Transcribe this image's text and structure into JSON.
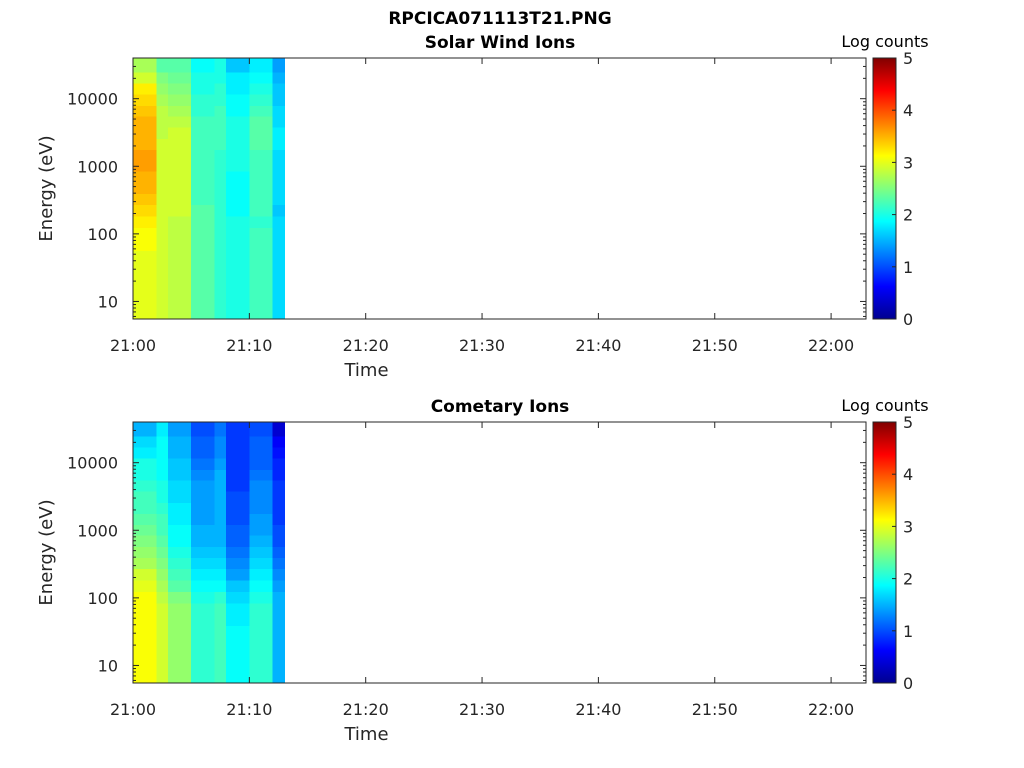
{
  "figure_title": "RPCICA071113T21.PNG",
  "chart_data": [
    {
      "type": "heatmap",
      "title": "Solar Wind Ions",
      "xlabel": "Time",
      "ylabel": "Energy (eV)",
      "x_ticks": [
        "21:00",
        "21:10",
        "21:20",
        "21:30",
        "21:40",
        "21:50",
        "22:00"
      ],
      "x_range": [
        "21:00",
        "22:03"
      ],
      "y_scale": "log",
      "y_ticks": [
        "10",
        "100",
        "1000",
        "10000"
      ],
      "y_range": [
        5.5,
        40000
      ],
      "colorbar_label": "Log counts",
      "colorbar_ticks": [
        "0",
        "1",
        "2",
        "3",
        "4",
        "5"
      ],
      "colorbar_range": [
        0,
        5
      ],
      "colormap": "jet",
      "time_columns": [
        "21:00",
        "21:02",
        "21:03",
        "21:05",
        "21:07",
        "21:08",
        "21:10",
        "21:12"
      ],
      "data_end": "21:13",
      "energy_rows": [
        30000,
        20000,
        14000,
        9500,
        6500,
        4500,
        3100,
        2100,
        1450,
        1000,
        690,
        470,
        320,
        220,
        150,
        100,
        68,
        46,
        32,
        22,
        15,
        10,
        7
      ],
      "log_counts": [
        [
          2.7,
          2.3,
          2.3,
          1.9,
          2.0,
          1.6,
          1.8,
          1.4
        ],
        [
          2.9,
          2.5,
          2.4,
          2.0,
          2.0,
          1.8,
          1.9,
          1.5
        ],
        [
          3.2,
          2.6,
          2.5,
          2.0,
          2.1,
          1.8,
          2.0,
          1.6
        ],
        [
          3.3,
          2.7,
          2.6,
          2.1,
          2.1,
          1.9,
          2.1,
          1.6
        ],
        [
          3.4,
          2.8,
          2.7,
          2.1,
          2.2,
          1.9,
          2.2,
          1.7
        ],
        [
          3.5,
          2.8,
          2.8,
          2.2,
          2.2,
          2.0,
          2.3,
          1.7
        ],
        [
          3.5,
          2.8,
          2.9,
          2.2,
          2.2,
          2.0,
          2.3,
          1.8
        ],
        [
          3.5,
          2.9,
          2.9,
          2.2,
          2.2,
          2.0,
          2.3,
          1.8
        ],
        [
          3.6,
          2.9,
          2.9,
          2.2,
          2.1,
          2.0,
          2.2,
          1.7
        ],
        [
          3.6,
          2.9,
          2.9,
          2.2,
          2.1,
          2.0,
          2.2,
          1.7
        ],
        [
          3.5,
          2.9,
          2.9,
          2.2,
          2.1,
          1.9,
          2.2,
          1.7
        ],
        [
          3.5,
          2.9,
          2.9,
          2.2,
          2.1,
          1.9,
          2.2,
          1.7
        ],
        [
          3.4,
          2.9,
          2.9,
          2.2,
          2.1,
          1.9,
          2.2,
          1.7
        ],
        [
          3.3,
          2.9,
          2.9,
          2.3,
          2.1,
          1.9,
          2.2,
          1.6
        ],
        [
          3.2,
          2.9,
          2.8,
          2.3,
          2.1,
          2.0,
          2.1,
          1.7
        ],
        [
          3.1,
          2.9,
          2.8,
          2.3,
          2.1,
          2.0,
          2.2,
          1.7
        ],
        [
          3.1,
          2.9,
          2.8,
          2.3,
          2.1,
          2.0,
          2.2,
          1.7
        ],
        [
          3.0,
          2.9,
          2.8,
          2.3,
          2.1,
          2.0,
          2.2,
          1.7
        ],
        [
          3.0,
          2.9,
          2.8,
          2.3,
          2.1,
          2.0,
          2.2,
          1.7
        ],
        [
          3.0,
          2.9,
          2.8,
          2.3,
          2.1,
          2.0,
          2.2,
          1.7
        ],
        [
          3.0,
          2.9,
          2.8,
          2.3,
          2.1,
          2.0,
          2.2,
          1.7
        ],
        [
          3.0,
          2.9,
          2.8,
          2.3,
          2.1,
          2.0,
          2.2,
          1.7
        ],
        [
          3.0,
          2.9,
          2.8,
          2.3,
          2.1,
          2.0,
          2.2,
          1.7
        ]
      ]
    },
    {
      "type": "heatmap",
      "title": "Cometary Ions",
      "xlabel": "Time",
      "ylabel": "Energy (eV)",
      "x_ticks": [
        "21:00",
        "21:10",
        "21:20",
        "21:30",
        "21:40",
        "21:50",
        "22:00"
      ],
      "x_range": [
        "21:00",
        "22:03"
      ],
      "y_scale": "log",
      "y_ticks": [
        "10",
        "100",
        "1000",
        "10000"
      ],
      "y_range": [
        5.5,
        40000
      ],
      "colorbar_label": "Log counts",
      "colorbar_ticks": [
        "0",
        "1",
        "2",
        "3",
        "4",
        "5"
      ],
      "colorbar_range": [
        0,
        5
      ],
      "colormap": "jet",
      "time_columns": [
        "21:00",
        "21:02",
        "21:03",
        "21:05",
        "21:07",
        "21:08",
        "21:10",
        "21:12"
      ],
      "data_end": "21:13",
      "energy_rows": [
        30000,
        20000,
        14000,
        9500,
        6500,
        4500,
        3100,
        2100,
        1450,
        1000,
        690,
        470,
        320,
        220,
        150,
        100,
        68,
        46,
        32,
        22,
        15,
        10,
        7
      ],
      "log_counts": [
        [
          1.5,
          1.8,
          1.4,
          1.0,
          1.2,
          0.9,
          1.0,
          0.4
        ],
        [
          1.7,
          1.9,
          1.5,
          1.1,
          1.3,
          0.9,
          1.1,
          0.6
        ],
        [
          1.8,
          1.9,
          1.5,
          1.1,
          1.3,
          0.9,
          1.1,
          0.7
        ],
        [
          2.0,
          1.9,
          1.6,
          1.2,
          1.4,
          0.9,
          1.1,
          0.8
        ],
        [
          2.0,
          1.9,
          1.6,
          1.3,
          1.5,
          0.9,
          1.2,
          0.8
        ],
        [
          2.1,
          2.0,
          1.7,
          1.4,
          1.5,
          0.9,
          1.3,
          0.9
        ],
        [
          2.2,
          2.0,
          1.7,
          1.4,
          1.5,
          1.0,
          1.3,
          0.9
        ],
        [
          2.2,
          2.1,
          1.8,
          1.4,
          1.5,
          1.0,
          1.3,
          0.9
        ],
        [
          2.3,
          2.2,
          1.8,
          1.4,
          1.5,
          1.0,
          1.4,
          0.9
        ],
        [
          2.4,
          2.2,
          1.9,
          1.5,
          1.5,
          1.1,
          1.4,
          1.0
        ],
        [
          2.5,
          2.3,
          1.9,
          1.5,
          1.5,
          1.1,
          1.5,
          1.0
        ],
        [
          2.6,
          2.4,
          2.0,
          1.6,
          1.6,
          1.2,
          1.6,
          1.1
        ],
        [
          2.7,
          2.5,
          2.1,
          1.7,
          1.7,
          1.3,
          1.7,
          1.2
        ],
        [
          2.9,
          2.6,
          2.2,
          1.8,
          1.8,
          1.4,
          1.8,
          1.3
        ],
        [
          3.0,
          2.7,
          2.3,
          1.9,
          1.9,
          1.6,
          1.9,
          1.4
        ],
        [
          3.1,
          2.8,
          2.5,
          2.0,
          2.1,
          1.7,
          2.0,
          1.5
        ],
        [
          3.1,
          2.9,
          2.6,
          2.1,
          2.2,
          1.8,
          2.1,
          1.5
        ],
        [
          3.1,
          2.9,
          2.6,
          2.1,
          2.2,
          1.8,
          2.1,
          1.5
        ],
        [
          3.1,
          2.9,
          2.6,
          2.1,
          2.2,
          1.9,
          2.1,
          1.5
        ],
        [
          3.1,
          2.9,
          2.6,
          2.1,
          2.2,
          1.9,
          2.1,
          1.5
        ],
        [
          3.1,
          2.9,
          2.6,
          2.1,
          2.2,
          1.9,
          2.1,
          1.5
        ],
        [
          3.1,
          2.9,
          2.6,
          2.1,
          2.2,
          1.9,
          2.1,
          1.5
        ],
        [
          3.1,
          2.9,
          2.6,
          2.1,
          2.2,
          1.9,
          2.1,
          1.5
        ]
      ]
    }
  ]
}
